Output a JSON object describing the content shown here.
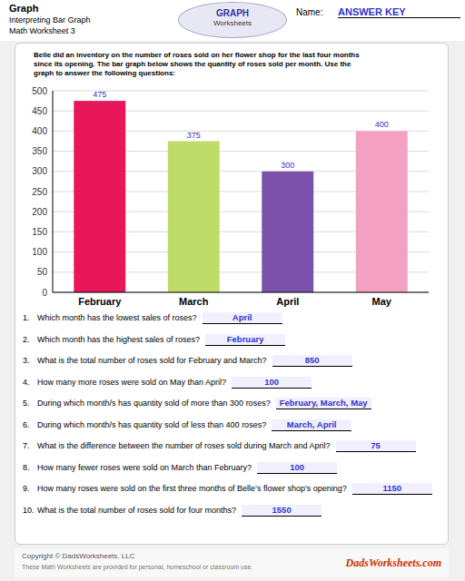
{
  "chart_data": {
    "type": "bar",
    "title": "Graph",
    "subtitle": [
      "Interpreting Bar Graph",
      "Math Worksheet 3"
    ],
    "categories": [
      "February",
      "March",
      "April",
      "May"
    ],
    "values": [
      475,
      375,
      300,
      400
    ],
    "colors": [
      "#E8175A",
      "#BFDB6A",
      "#7B52AB",
      "#F4A0C0"
    ],
    "ylim": [
      0,
      500
    ],
    "yticks": [
      0,
      50,
      100,
      150,
      200,
      250,
      300,
      350,
      400,
      450,
      500
    ],
    "grid": true,
    "data_labels": true,
    "annotations": [
      "Name:",
      "ANSWER KEY",
      "GRAPH",
      "Worksheets",
      "Belle did an inventory on the number of roses sold on her flower shop for the last four months\nsince its opening.  The bar graph below shows the quantity of roses sold per month.  Use the\ngraph to answer the following questions:",
      "1.",
      "Which month has the lowest sales of roses?",
      "April",
      "2.",
      "Which month has the highest sales of roses?",
      "February",
      "3.",
      "What is the total number of roses sold for February and March?",
      "850",
      "4.",
      "How many more roses were sold on May than April?",
      "100",
      "5.",
      "During which month/s has quantity sold of more than 300 roses?",
      "February, March, May",
      "6.",
      "During which month/s has quantity sold of less than 400 roses?",
      "March, April",
      "7.",
      "What is the difference between the number of roses sold during March and April?",
      "75",
      "8.",
      "How many fewer roses were sold on March than February?",
      "100",
      "9.",
      "How many roses were sold on the first three months of Belle’s flower shop’s opening?",
      "1150",
      "10.",
      "What is the total number of roses sold for four months?",
      "1550",
      "Copyright © DadsWorksheets, LLC",
      "These Math Worksheets are provided for personal, homeschool or classroom use.",
      "DadsWorksheets.com"
    ]
  }
}
